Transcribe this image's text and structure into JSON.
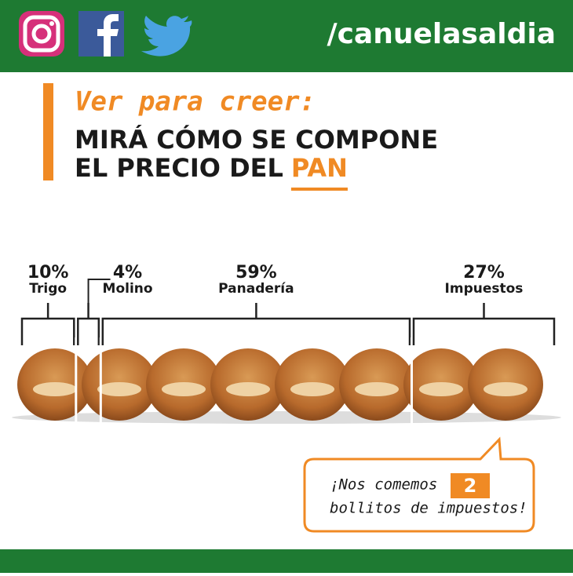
{
  "header": {
    "handle": "/canuelasaldia"
  },
  "title": {
    "kicker": "Ver para creer:",
    "line1": "MIRÁ CÓMO SE COMPONE",
    "line2": "EL PRECIO DEL",
    "highlight": "PAN"
  },
  "segments": [
    {
      "percent": 10,
      "label": "10%",
      "name": "Trigo"
    },
    {
      "percent": 4,
      "label": "4%",
      "name": "Molino"
    },
    {
      "percent": 59,
      "label": "59%",
      "name": "Panadería"
    },
    {
      "percent": 27,
      "label": "27%",
      "name": "Impuestos"
    }
  ],
  "callout": {
    "line1": "¡Nos comemos",
    "number": "2",
    "line2": "bollitos de impuestos!"
  }
}
